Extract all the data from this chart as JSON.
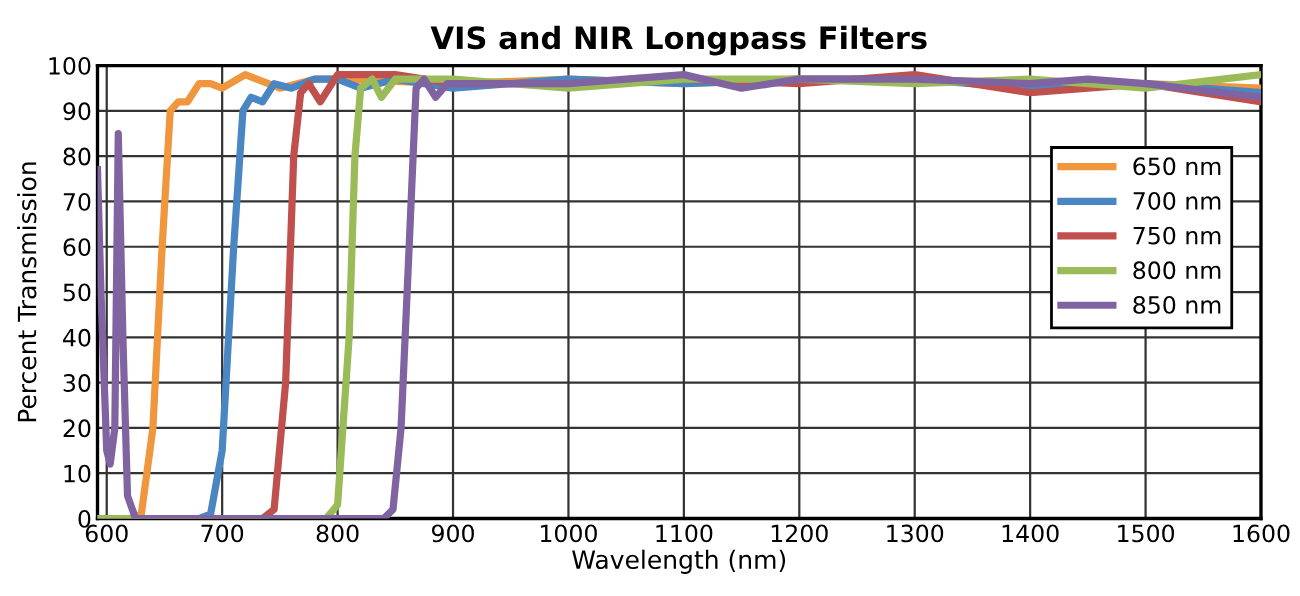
{
  "chart_data": {
    "type": "line",
    "title": "VIS and NIR Longpass Filters",
    "xlabel": "Wavelength (nm)",
    "ylabel": "Percent Transmission",
    "xlim": [
      592,
      1600
    ],
    "xticks": [
      600,
      700,
      800,
      900,
      1000,
      1100,
      1200,
      1300,
      1400,
      1500,
      1600
    ],
    "ylim": [
      0,
      100
    ],
    "yticks": [
      0,
      10,
      20,
      30,
      40,
      50,
      60,
      70,
      80,
      90,
      100
    ],
    "grid": true,
    "legend": "right",
    "series": [
      {
        "name": "650 nm",
        "color": "#f0963c",
        "x": [
          620,
          630,
          640,
          648,
          655,
          662,
          670,
          680,
          690,
          700,
          720,
          730,
          750,
          780,
          800,
          900,
          1000,
          1100,
          1200,
          1300,
          1400,
          1500,
          1600
        ],
        "values": [
          0,
          1,
          20,
          60,
          90,
          92,
          92,
          96,
          96,
          95,
          98,
          97,
          95,
          97,
          97,
          96,
          97,
          96,
          97,
          97,
          96,
          96,
          95
        ]
      },
      {
        "name": "700 nm",
        "color": "#4a86c2",
        "x": [
          592,
          680,
          690,
          700,
          710,
          718,
          725,
          735,
          745,
          760,
          780,
          800,
          820,
          850,
          900,
          1000,
          1100,
          1200,
          1300,
          1400,
          1500,
          1600
        ],
        "values": [
          0,
          0,
          1,
          15,
          60,
          90,
          93,
          92,
          96,
          95,
          97,
          97,
          95,
          97,
          95,
          97,
          96,
          97,
          97,
          95,
          96,
          94
        ]
      },
      {
        "name": "750 nm",
        "color": "#c0504d",
        "x": [
          592,
          735,
          745,
          755,
          762,
          768,
          775,
          785,
          800,
          850,
          900,
          1000,
          1100,
          1200,
          1300,
          1400,
          1500,
          1600
        ],
        "values": [
          0,
          0,
          2,
          30,
          80,
          94,
          96,
          92,
          98,
          98,
          96,
          96,
          97,
          96,
          98,
          94,
          96,
          92
        ]
      },
      {
        "name": "800 nm",
        "color": "#9bbb59",
        "x": [
          592,
          790,
          800,
          810,
          815,
          820,
          830,
          838,
          850,
          900,
          1000,
          1100,
          1200,
          1300,
          1400,
          1500,
          1600
        ],
        "values": [
          0,
          0,
          3,
          40,
          80,
          95,
          97,
          93,
          97,
          97,
          95,
          97,
          97,
          96,
          97,
          95,
          98
        ]
      },
      {
        "name": "850 nm",
        "color": "#8064a2",
        "x": [
          592,
          595,
          600,
          603,
          607,
          610,
          614,
          618,
          625,
          840,
          848,
          855,
          862,
          868,
          875,
          885,
          895,
          1000,
          1050,
          1100,
          1150,
          1200,
          1300,
          1400,
          1450,
          1500,
          1600
        ],
        "values": [
          77,
          50,
          15,
          12,
          20,
          85,
          40,
          5,
          0,
          0,
          2,
          20,
          60,
          95,
          97,
          93,
          96,
          96,
          97,
          98,
          95,
          97,
          97,
          96,
          97,
          96,
          93
        ]
      }
    ]
  }
}
